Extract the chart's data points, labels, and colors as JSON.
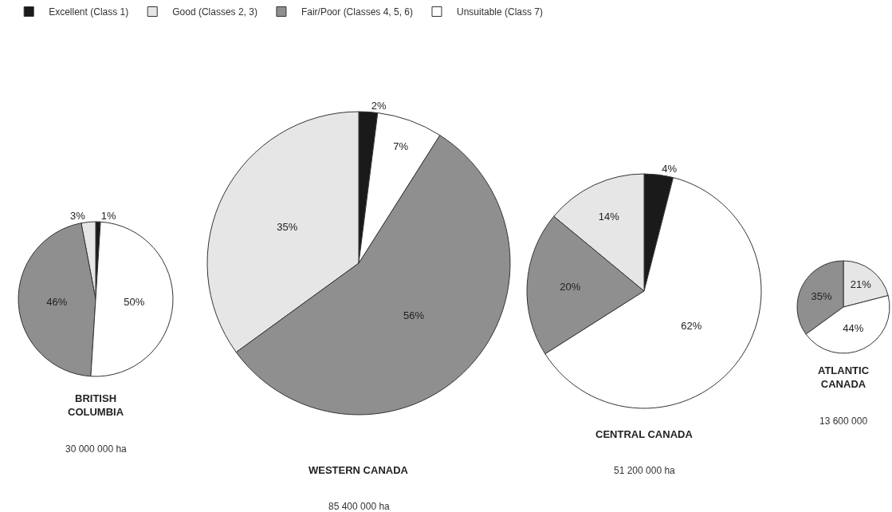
{
  "chart_data": [
    {
      "type": "pie",
      "title": "BRITISH COLUMBIA",
      "annotations": [
        "30 000 000 ha"
      ],
      "categories": [
        "Excellent (Class 1)",
        "Good (Classes 2, 3)",
        "Fair/Poor (Classes 4, 5, 6)",
        "Unsuitable (Class 7)"
      ],
      "values": [
        1,
        3,
        46,
        50
      ],
      "value_labels": [
        "1%",
        "3%",
        "46%",
        "50%"
      ],
      "colors": [
        "#1a1a1a",
        "#e6e6e6",
        "#8f8f8f",
        "#ffffff"
      ],
      "legend": "top"
    },
    {
      "type": "pie",
      "title": "WESTERN CANADA",
      "annotations": [
        "85 400 000 ha"
      ],
      "categories": [
        null,
        null,
        null,
        null
      ],
      "values": [
        2,
        35,
        56,
        7
      ],
      "value_labels": [
        "2%",
        "35%",
        "56%",
        "7%"
      ],
      "colors": [
        "#1a1a1a",
        "#e6e6e6",
        "#8f8f8f",
        "#ffffff"
      ]
    },
    {
      "type": "pie",
      "title": "CENTRAL CANADA",
      "annotations": [
        "51 200 000 ha"
      ],
      "categories": [
        null,
        null,
        null,
        null
      ],
      "values": [
        4,
        14,
        20,
        62
      ],
      "value_labels": [
        "4%",
        "14%",
        "20%",
        "62%"
      ],
      "colors": [
        "#1a1a1a",
        "#e6e6e6",
        "#8f8f8f",
        "#ffffff"
      ]
    },
    {
      "type": "pie",
      "title": "ATLANTIC CANADA",
      "annotations": [
        "13 600 000"
      ],
      "categories": [
        null,
        null,
        null
      ],
      "values": [
        21,
        35,
        44
      ],
      "value_labels": [
        "21%",
        "35%",
        "44%"
      ],
      "colors": [
        "#e6e6e6",
        "#8f8f8f",
        "#ffffff"
      ]
    }
  ]
}
